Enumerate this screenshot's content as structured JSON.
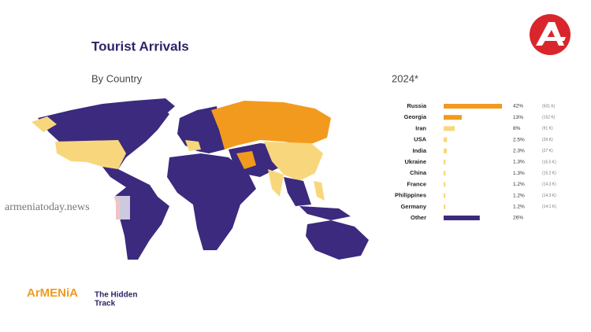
{
  "header": {
    "title": "Tourist Arrivals",
    "subtitle": "By Country"
  },
  "brand": {
    "name": "ArMENiA",
    "tagline_1": "The Hidden",
    "tagline_2": "Track"
  },
  "watermark": "armeniatoday.news",
  "chart_data": {
    "type": "hbar",
    "title": "2024*",
    "categories": [
      "Russia",
      "Georgia",
      "Iran",
      "USA",
      "India",
      "Ukraine",
      "China",
      "France",
      "Philippines",
      "Germany",
      "Other"
    ],
    "values": [
      42,
      13,
      8,
      2.5,
      2.3,
      1.3,
      1.3,
      1.2,
      1.2,
      1.2,
      26
    ],
    "value_labels": [
      "42%",
      "13%",
      "8%",
      "2.5%",
      "2.3%",
      "1.3%",
      "1.3%",
      "1.2%",
      "1.2%",
      "1.2%",
      "26%"
    ],
    "counts": [
      "(501 K)",
      "(152 K)",
      "(91 K)",
      "(29 K)",
      "(27 K)",
      "(15.5 K)",
      "(15.2 K)",
      "(14.3 K)",
      "(14.3 K)",
      "(14.1 K)",
      null
    ],
    "colors": [
      "#f29a1e",
      "#f29a1e",
      "#f8d77c",
      "#f8d77c",
      "#f8d77c",
      "#f8d77c",
      "#f8d77c",
      "#f8d77c",
      "#f8d77c",
      "#f8d77c",
      "#3b2a7e"
    ]
  }
}
